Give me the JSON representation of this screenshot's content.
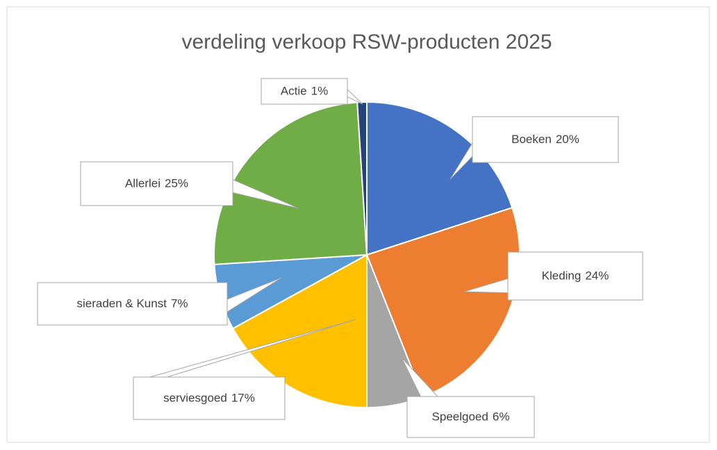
{
  "chart_data": {
    "type": "pie",
    "title": "verdeling verkoop RSW-producten 2025",
    "categories": [
      "Boeken",
      "Kleding",
      "Speelgoed",
      "serviesgoed",
      "sieraden & Kunst",
      "Allerlei",
      "Actie"
    ],
    "values": [
      20,
      24,
      6,
      17,
      7,
      25,
      1
    ],
    "value_labels": [
      "20%",
      "24%",
      "6%",
      "17%",
      "7%",
      "25%",
      "1%"
    ],
    "colors": [
      "#4472c4",
      "#ed7d31",
      "#a5a5a5",
      "#ffc000",
      "#5b9bd5",
      "#70ad47",
      "#264478"
    ]
  }
}
